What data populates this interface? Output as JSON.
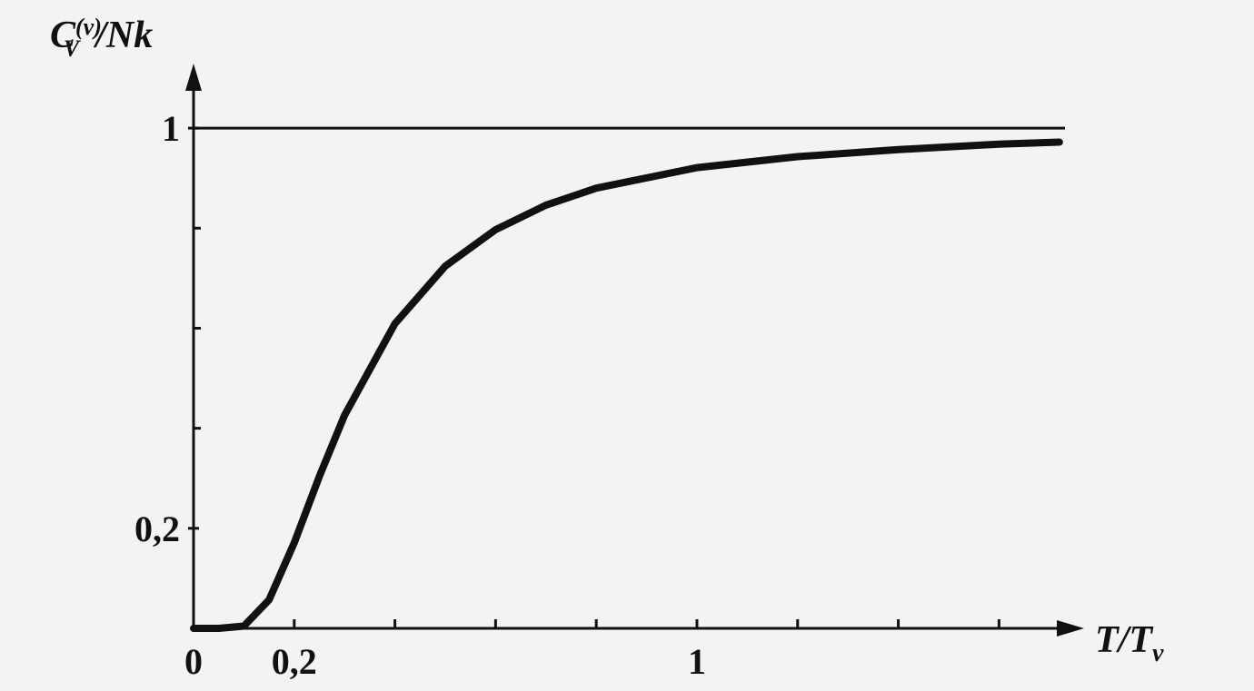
{
  "chart_data": {
    "type": "line",
    "ylabel": {
      "base": "C",
      "sup": "(v)",
      "sub": "V",
      "rest": "/Nk"
    },
    "xlabel": {
      "base": "T/T",
      "sub": "v"
    },
    "x": [
      0,
      0.05,
      0.1,
      0.15,
      0.2,
      0.25,
      0.3,
      0.4,
      0.5,
      0.6,
      0.7,
      0.8,
      1,
      1.2,
      1.4,
      1.6,
      1.72
    ],
    "series": [
      {
        "color": "#111111",
        "values": [
          0,
          0,
          0.0045,
          0.057,
          0.171,
          0.304,
          0.426,
          0.609,
          0.724,
          0.797,
          0.846,
          0.88,
          0.921,
          0.943,
          0.957,
          0.968,
          0.972
        ]
      }
    ],
    "asymptote": 1,
    "xlim": [
      0,
      1.76
    ],
    "ylim": [
      0,
      1.12
    ],
    "xticks": [
      0,
      {
        "value": 0.2,
        "label": "0,2"
      },
      1
    ],
    "minor_xticks": [
      0.4,
      0.6,
      0.8,
      1.2,
      1.4,
      1.6
    ],
    "yticks": [
      {
        "value": 0.2,
        "label": "0,2"
      },
      1
    ],
    "minor_yticks": [
      0.4,
      0.6,
      0.8
    ]
  }
}
